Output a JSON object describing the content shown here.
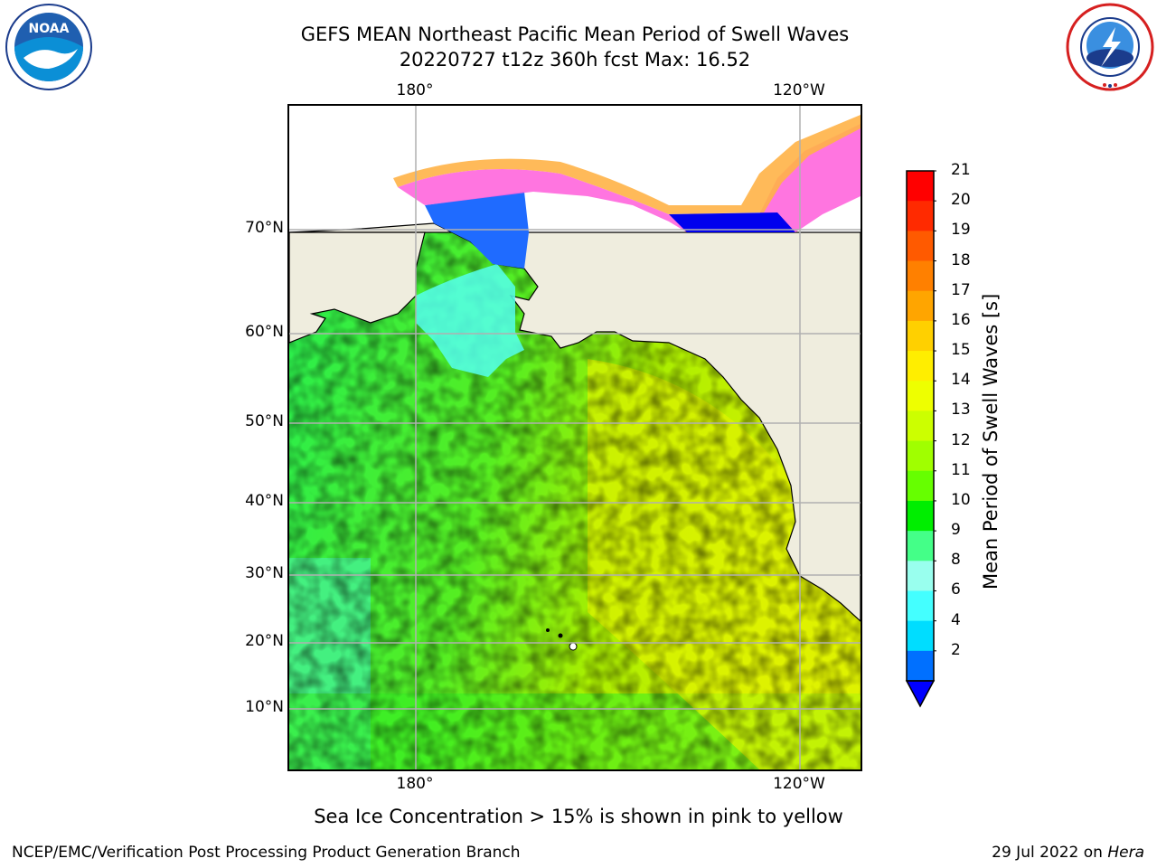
{
  "title": {
    "line1": "GEFS MEAN Northeast Pacific Mean Period of Swell Waves",
    "line2": "20220727 t12z 360h fcst   Max: 16.52"
  },
  "map": {
    "lon_labels_top": [
      "180°",
      "120°W"
    ],
    "lon_labels_bottom": [
      "180°",
      "120°W"
    ],
    "lat_labels": [
      "70°N",
      "60°N",
      "50°N",
      "40°N",
      "30°N",
      "20°N",
      "10°N"
    ],
    "land_color": "#efedde",
    "grid_color": "#b0b0b0"
  },
  "colorbar": {
    "label": "Mean Period of Swell Waves [s]",
    "ticks": [
      "21",
      "20",
      "19",
      "18",
      "17",
      "16",
      "15",
      "14",
      "13",
      "12",
      "11",
      "10",
      "9",
      "8",
      "6",
      "4",
      "2"
    ],
    "colors": [
      "#ff0000",
      "#ff2a00",
      "#ff5a00",
      "#ff8000",
      "#ffa500",
      "#ffd000",
      "#ffee00",
      "#eeff00",
      "#ccff00",
      "#a0ff00",
      "#66ff00",
      "#00ee00",
      "#44ff88",
      "#99ffee",
      "#44ffff",
      "#00ddff",
      "#0070ff"
    ],
    "under_color": "#0000ff",
    "extend": "min"
  },
  "notes": {
    "ice_note": "Sea Ice Concentration > 15% is shown in pink to yellow"
  },
  "footer": {
    "left": "NCEP/EMC/Verification Post Processing Product Generation Branch",
    "right_date": "29 Jul 2022 on ",
    "right_machine": "Hera"
  },
  "logos": {
    "left": {
      "name": "noaa-logo",
      "text": "NOAA"
    },
    "right": {
      "name": "nws-logo",
      "text": "NATIONAL WEATHER SERVICE"
    }
  }
}
